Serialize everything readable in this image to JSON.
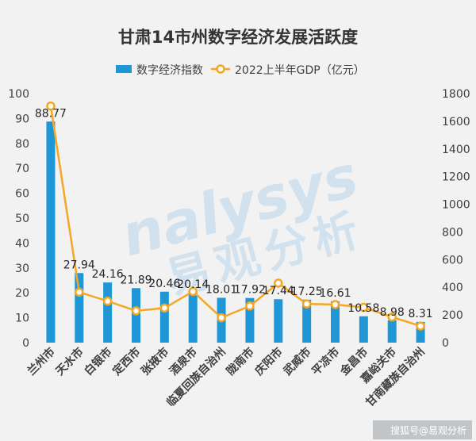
{
  "title": "甘肃14市州数字经济发展活跃度",
  "legend": {
    "bar_label": "数字经济指数",
    "line_label": "2022上半年GDP（亿元）"
  },
  "watermark": {
    "en": "nalysys",
    "cn": "易观分析"
  },
  "footer": "搜狐号@易观分析",
  "colors": {
    "bar": "#1f97d6",
    "line": "#f5a623",
    "marker_fill": "#ffffff",
    "background": "#f2f2f2"
  },
  "chart_data": {
    "type": "bar",
    "title": "甘肃14市州数字经济发展活跃度",
    "categories": [
      "兰州市",
      "天水市",
      "白银市",
      "定西市",
      "张掖市",
      "酒泉市",
      "临夏回族自治州",
      "陇南市",
      "庆阳市",
      "武威市",
      "平凉市",
      "金昌市",
      "嘉峪关市",
      "甘南藏族自治州"
    ],
    "series": [
      {
        "name": "数字经济指数",
        "type": "bar",
        "axis": "left",
        "values": [
          88.77,
          27.94,
          24.16,
          21.89,
          20.46,
          20.14,
          18.01,
          17.92,
          17.44,
          17.25,
          16.61,
          10.58,
          8.98,
          8.31
        ]
      },
      {
        "name": "2022上半年GDP（亿元）",
        "type": "line",
        "axis": "right",
        "values": [
          1710,
          365,
          300,
          230,
          250,
          370,
          180,
          265,
          430,
          280,
          275,
          255,
          185,
          120
        ]
      }
    ],
    "ylim_left": [
      0,
      100
    ],
    "yticks_left": [
      0,
      10,
      20,
      30,
      40,
      50,
      60,
      70,
      80,
      90,
      100
    ],
    "ylim_right": [
      0,
      1800
    ],
    "yticks_right": [
      0,
      200,
      400,
      600,
      800,
      1000,
      1200,
      1400,
      1600,
      1800
    ],
    "grid": false,
    "legend_position": "top-center"
  }
}
